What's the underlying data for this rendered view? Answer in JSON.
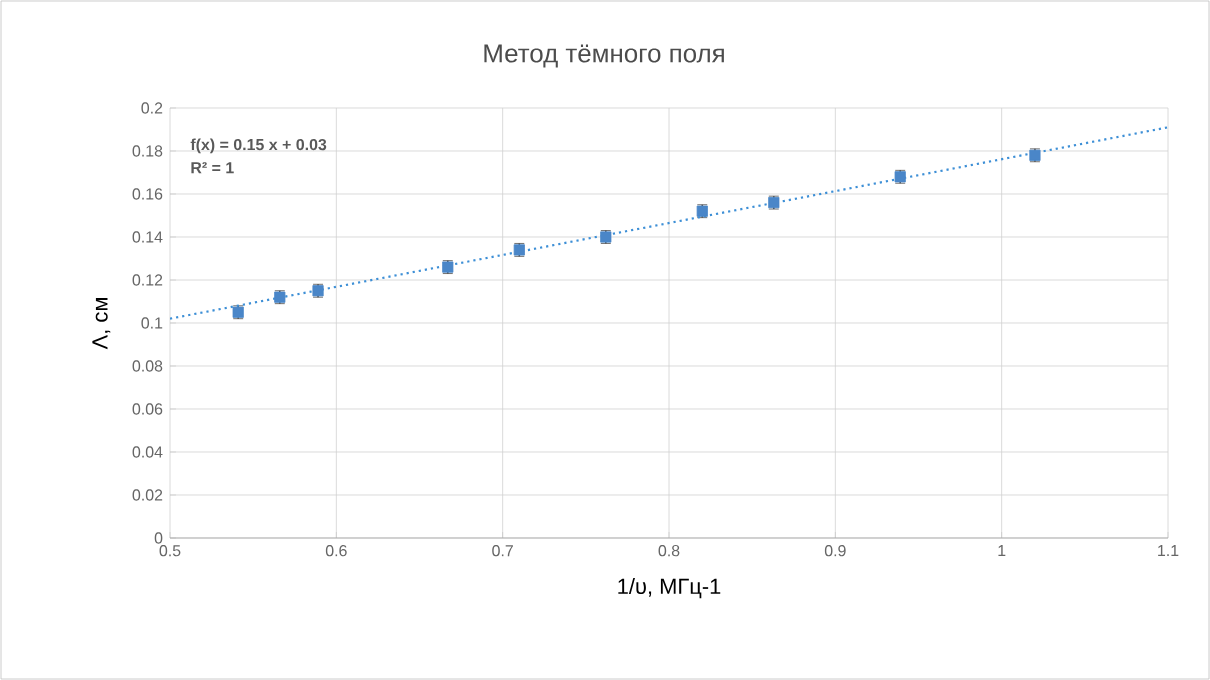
{
  "chart_data": {
    "type": "scatter",
    "title": "Метод тёмного поля",
    "xlabel": "1/υ, МГц-1",
    "ylabel": "Λ, см",
    "xlim": [
      0.5,
      1.1
    ],
    "xticks": [
      0.5,
      0.6,
      0.7,
      0.8,
      0.9,
      1,
      1.1
    ],
    "ylim": [
      0,
      0.2
    ],
    "yticks": [
      0,
      0.02,
      0.04,
      0.06,
      0.08,
      0.1,
      0.12,
      0.14,
      0.16,
      0.18,
      0.2
    ],
    "grid": true,
    "annotations": [
      "f(x) = 0.15 x + 0.03",
      "R² = 1"
    ],
    "series": [
      {
        "type": "scatter",
        "color": "#4a86c8",
        "marker": "square",
        "x": [
          0.541,
          0.566,
          0.589,
          0.667,
          0.71,
          0.762,
          0.82,
          0.863,
          0.939,
          1.02
        ],
        "values": [
          0.105,
          0.112,
          0.115,
          0.126,
          0.134,
          0.14,
          0.152,
          0.156,
          0.168,
          0.178
        ],
        "errors": [
          0.003,
          0.003,
          0.003,
          0.003,
          0.003,
          0.003,
          0.003,
          0.003,
          0.003,
          0.003
        ]
      },
      {
        "type": "line",
        "color": "#3d8fd6",
        "marker": "none",
        "line_style": "dotted",
        "x": [
          0.5,
          1.1
        ],
        "values": [
          0.102,
          0.191
        ]
      }
    ]
  }
}
